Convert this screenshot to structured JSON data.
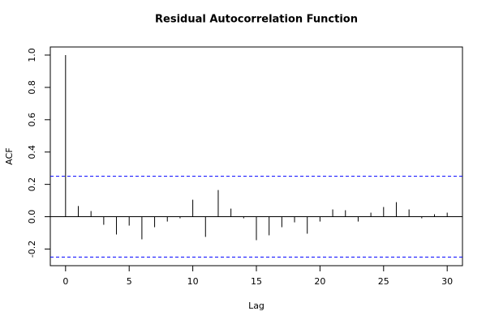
{
  "chart_data": {
    "type": "acf",
    "title": "Residual Autocorrelation Function",
    "x_label": "Lag",
    "y_label": "ACF",
    "x": [
      0,
      1,
      2,
      3,
      4,
      5,
      6,
      7,
      8,
      9,
      10,
      11,
      12,
      13,
      14,
      15,
      16,
      17,
      18,
      19,
      20,
      21,
      22,
      23,
      24,
      25,
      26,
      27,
      28,
      29,
      30
    ],
    "values": [
      1.0,
      0.066,
      0.035,
      -0.05,
      -0.11,
      -0.055,
      -0.14,
      -0.065,
      -0.03,
      -0.01,
      0.105,
      -0.125,
      0.165,
      0.05,
      -0.01,
      -0.145,
      -0.115,
      -0.065,
      -0.035,
      -0.105,
      -0.03,
      0.045,
      0.04,
      -0.03,
      0.025,
      0.06,
      0.09,
      0.045,
      -0.01,
      0.015,
      0.025
    ],
    "color": "#000000",
    "ci_lines": [
      0.25,
      -0.25
    ],
    "ci_color": "#0000ff",
    "xlim": [
      -1.2,
      31.2
    ],
    "xticks": [
      0,
      5,
      10,
      15,
      20,
      25,
      30
    ],
    "ylim": [
      -0.303,
      1.05
    ],
    "yticks": [
      -0.2,
      {
        "value": 0,
        "label": "0.0"
      },
      0.2,
      0.4,
      0.6,
      0.8,
      {
        "value": 1,
        "label": "1.0"
      }
    ]
  }
}
